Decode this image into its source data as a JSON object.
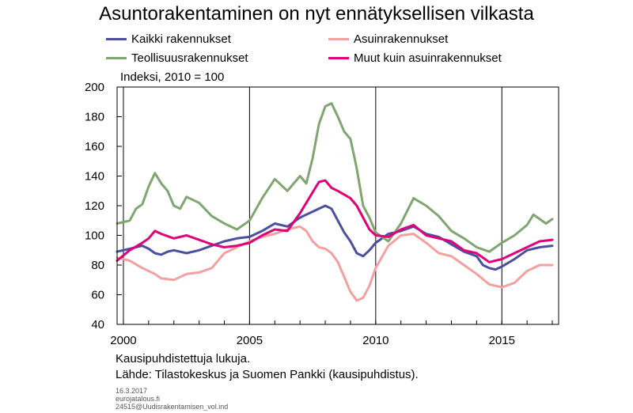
{
  "title": "Asuntorakentaminen on nyt ennätyksellisen vilkasta",
  "units_label": "Indeksi, 2010 = 100",
  "note": "Kausipuhdistettuja lukuja.",
  "source": "Lähde: Tilastokeskus ja Suomen Pankki (kausipuhdistus).",
  "meta": {
    "date": "16.3.2017",
    "site": "eurojatalous.fi",
    "file": "24515@Uudisrakentamisen_vol.ind"
  },
  "chart_data": {
    "type": "line",
    "title": "Asuntorakentaminen on nyt ennätyksellisen vilkasta",
    "ylabel": "Indeksi, 2010 = 100",
    "xlabel": "",
    "xlim": [
      1999.75,
      2017.25
    ],
    "ylim": [
      40,
      200
    ],
    "yticks": [
      40,
      60,
      80,
      100,
      120,
      140,
      160,
      180,
      200
    ],
    "xticks": [
      2000,
      2005,
      2010,
      2015
    ],
    "xtick_labels": [
      "2000",
      "2005",
      "2010",
      "2015"
    ],
    "vertical_gridlines": [
      2000,
      2005,
      2010,
      2015
    ],
    "legend_position": "top",
    "series": [
      {
        "name": "Kaikki rakennukset",
        "color": "#4a4fa0",
        "points": [
          [
            1999.75,
            89
          ],
          [
            2000.25,
            91
          ],
          [
            2000.75,
            93
          ],
          [
            2001.0,
            91
          ],
          [
            2001.25,
            88
          ],
          [
            2001.5,
            87
          ],
          [
            2001.75,
            89
          ],
          [
            2002.0,
            90
          ],
          [
            2002.5,
            88
          ],
          [
            2003.0,
            90
          ],
          [
            2003.5,
            93
          ],
          [
            2004.0,
            96
          ],
          [
            2004.5,
            98
          ],
          [
            2005.0,
            99
          ],
          [
            2005.5,
            103
          ],
          [
            2006.0,
            108
          ],
          [
            2006.5,
            106
          ],
          [
            2007.0,
            112
          ],
          [
            2007.5,
            116
          ],
          [
            2008.0,
            120
          ],
          [
            2008.25,
            118
          ],
          [
            2008.5,
            110
          ],
          [
            2008.75,
            102
          ],
          [
            2009.0,
            96
          ],
          [
            2009.25,
            88
          ],
          [
            2009.5,
            86
          ],
          [
            2009.75,
            90
          ],
          [
            2010.0,
            95
          ],
          [
            2010.5,
            101
          ],
          [
            2011.0,
            103
          ],
          [
            2011.5,
            106
          ],
          [
            2012.0,
            101
          ],
          [
            2012.5,
            99
          ],
          [
            2013.0,
            94
          ],
          [
            2013.5,
            89
          ],
          [
            2014.0,
            86
          ],
          [
            2014.25,
            80
          ],
          [
            2014.5,
            78
          ],
          [
            2014.75,
            77
          ],
          [
            2015.0,
            79
          ],
          [
            2015.5,
            84
          ],
          [
            2016.0,
            90
          ],
          [
            2016.5,
            92
          ],
          [
            2017.0,
            93
          ]
        ]
      },
      {
        "name": "Asuinrakennukset",
        "color": "#f2a0a0",
        "points": [
          [
            1999.75,
            85
          ],
          [
            2000.25,
            83
          ],
          [
            2000.75,
            78
          ],
          [
            2001.25,
            74
          ],
          [
            2001.5,
            71
          ],
          [
            2002.0,
            70
          ],
          [
            2002.5,
            74
          ],
          [
            2003.0,
            75
          ],
          [
            2003.5,
            78
          ],
          [
            2004.0,
            88
          ],
          [
            2004.5,
            92
          ],
          [
            2005.0,
            96
          ],
          [
            2005.5,
            99
          ],
          [
            2006.0,
            101
          ],
          [
            2006.5,
            104
          ],
          [
            2007.0,
            106
          ],
          [
            2007.25,
            103
          ],
          [
            2007.5,
            96
          ],
          [
            2007.75,
            92
          ],
          [
            2008.0,
            91
          ],
          [
            2008.25,
            88
          ],
          [
            2008.5,
            82
          ],
          [
            2008.75,
            72
          ],
          [
            2009.0,
            62
          ],
          [
            2009.25,
            56
          ],
          [
            2009.5,
            58
          ],
          [
            2009.75,
            66
          ],
          [
            2010.0,
            78
          ],
          [
            2010.5,
            93
          ],
          [
            2011.0,
            100
          ],
          [
            2011.5,
            101
          ],
          [
            2012.0,
            95
          ],
          [
            2012.5,
            88
          ],
          [
            2013.0,
            86
          ],
          [
            2013.5,
            80
          ],
          [
            2014.0,
            74
          ],
          [
            2014.5,
            67
          ],
          [
            2015.0,
            65
          ],
          [
            2015.5,
            68
          ],
          [
            2016.0,
            76
          ],
          [
            2016.5,
            80
          ],
          [
            2017.0,
            80
          ]
        ]
      },
      {
        "name": "Teollisuusrakennukset",
        "color": "#7fa66f",
        "points": [
          [
            1999.75,
            108
          ],
          [
            2000.25,
            110
          ],
          [
            2000.5,
            118
          ],
          [
            2000.75,
            121
          ],
          [
            2001.0,
            133
          ],
          [
            2001.25,
            142
          ],
          [
            2001.5,
            135
          ],
          [
            2001.75,
            130
          ],
          [
            2002.0,
            120
          ],
          [
            2002.25,
            118
          ],
          [
            2002.5,
            126
          ],
          [
            2003.0,
            122
          ],
          [
            2003.5,
            113
          ],
          [
            2004.0,
            108
          ],
          [
            2004.5,
            104
          ],
          [
            2005.0,
            110
          ],
          [
            2005.5,
            125
          ],
          [
            2006.0,
            138
          ],
          [
            2006.5,
            130
          ],
          [
            2007.0,
            140
          ],
          [
            2007.25,
            135
          ],
          [
            2007.5,
            152
          ],
          [
            2007.75,
            175
          ],
          [
            2008.0,
            187
          ],
          [
            2008.25,
            189
          ],
          [
            2008.5,
            180
          ],
          [
            2008.75,
            170
          ],
          [
            2009.0,
            165
          ],
          [
            2009.25,
            145
          ],
          [
            2009.5,
            120
          ],
          [
            2009.75,
            112
          ],
          [
            2010.0,
            102
          ],
          [
            2010.5,
            96
          ],
          [
            2011.0,
            108
          ],
          [
            2011.5,
            125
          ],
          [
            2012.0,
            120
          ],
          [
            2012.5,
            113
          ],
          [
            2013.0,
            103
          ],
          [
            2013.5,
            98
          ],
          [
            2014.0,
            92
          ],
          [
            2014.5,
            89
          ],
          [
            2015.0,
            95
          ],
          [
            2015.5,
            100
          ],
          [
            2016.0,
            107
          ],
          [
            2016.25,
            114
          ],
          [
            2016.5,
            111
          ],
          [
            2016.75,
            108
          ],
          [
            2017.0,
            111
          ]
        ]
      },
      {
        "name": "Muut kuin asuinrakennukset",
        "color": "#e0007a",
        "points": [
          [
            1999.75,
            83
          ],
          [
            2000.25,
            90
          ],
          [
            2000.75,
            95
          ],
          [
            2001.0,
            98
          ],
          [
            2001.25,
            103
          ],
          [
            2001.5,
            101
          ],
          [
            2002.0,
            98
          ],
          [
            2002.5,
            100
          ],
          [
            2003.0,
            97
          ],
          [
            2003.5,
            94
          ],
          [
            2004.0,
            92
          ],
          [
            2004.5,
            93
          ],
          [
            2005.0,
            95
          ],
          [
            2005.5,
            100
          ],
          [
            2006.0,
            104
          ],
          [
            2006.5,
            103
          ],
          [
            2007.0,
            115
          ],
          [
            2007.5,
            129
          ],
          [
            2007.75,
            136
          ],
          [
            2008.0,
            137
          ],
          [
            2008.25,
            132
          ],
          [
            2008.5,
            130
          ],
          [
            2009.0,
            125
          ],
          [
            2009.25,
            120
          ],
          [
            2009.5,
            112
          ],
          [
            2009.75,
            104
          ],
          [
            2010.0,
            100
          ],
          [
            2010.5,
            99
          ],
          [
            2011.0,
            104
          ],
          [
            2011.5,
            107
          ],
          [
            2012.0,
            100
          ],
          [
            2012.5,
            98
          ],
          [
            2013.0,
            96
          ],
          [
            2013.5,
            90
          ],
          [
            2014.0,
            88
          ],
          [
            2014.5,
            82
          ],
          [
            2015.0,
            84
          ],
          [
            2015.5,
            88
          ],
          [
            2016.0,
            92
          ],
          [
            2016.5,
            96
          ],
          [
            2017.0,
            97
          ]
        ]
      }
    ]
  }
}
